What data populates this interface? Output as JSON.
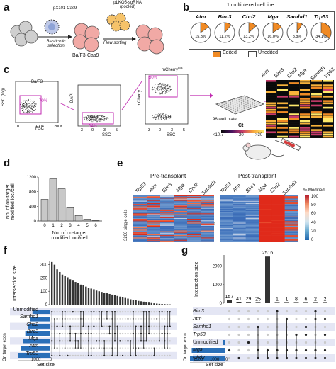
{
  "panels": {
    "a": {
      "label": "a",
      "vector1": "pX101-Cas9",
      "vector2_line1": "pLKO5-sgRNA",
      "vector2_line2": "(pooled)",
      "step1": "Blasticidin selection",
      "step1_l1": "Blasticidin",
      "step1_l2": "selection",
      "cells_label": "Ba/F3-Cas9",
      "step2": "Flow sorting",
      "cell_text": "Cas9"
    },
    "b": {
      "label": "b",
      "title": "1 multiplexed cell line",
      "genes": [
        "Atm",
        "Birc3",
        "Chd2",
        "Mga",
        "Samhd1",
        "Trp53"
      ],
      "percents": [
        "15.3%",
        "11.2%",
        "13.2%",
        "16.0%",
        "8.8%",
        "34.1%"
      ],
      "values": [
        15.3,
        11.2,
        13.2,
        16.0,
        8.8,
        34.1
      ],
      "legend_edited": "Edited",
      "legend_unedited": "Unedited",
      "edited_color": "#f08a24"
    },
    "c": {
      "label": "c",
      "plot1_gate": "Ba/F3",
      "plot1_pct": "70%",
      "plot1_ylabel": "SSC (log)",
      "plot1_xlabel": "FSC",
      "plot1_xticks": [
        "0",
        "100K",
        "200K"
      ],
      "plot2_gate": "DAPI",
      "plot2_gate_sup": "neg",
      "plot2_pct": "94%",
      "plot2_ylabel": "DAPI",
      "plot2_xlabel": "SSC",
      "plot2_xticks": [
        "-3",
        "0",
        "3",
        "5"
      ],
      "plot3_gate": "mCherry",
      "plot3_gate_sup": "pos",
      "plot3_pct": "50%",
      "plot3_ylabel": "mCherry",
      "plot3_xlabel": "SSC",
      "plot3_xticks": [
        "-3",
        "0",
        "3",
        "5"
      ],
      "plate_label": "96-well plate",
      "heat_genes": [
        "Atm",
        "Birc3",
        "Chd2",
        "Mga",
        "Samhd1",
        "Trp53"
      ],
      "ct_label": "Ct",
      "ct_ticks": [
        "<10.7",
        "20",
        ">30"
      ]
    },
    "d": {
      "label": "d",
      "ylabel": "No. of on-target modified loci/cell",
      "ylabel_l1": "No. of on-target",
      "ylabel_l2": "modified loci/cell",
      "xlabel_l1": "No. of on-target",
      "xlabel_l2": "modified loci/cell",
      "yticks": [
        "0",
        "400",
        "800",
        "1200"
      ]
    },
    "e": {
      "label": "e",
      "pre_title": "Pre-transplant",
      "post_title": "Post-transplant",
      "pre_genes": [
        "Trp53",
        "Atm",
        "Birc3",
        "Mga",
        "Chd2",
        "Samhd1"
      ],
      "post_genes": [
        "Trp53",
        "Atm",
        "Birc3",
        "Mga",
        "Chd2",
        "Samhd1"
      ],
      "pre_ylabel": "3200 single cells",
      "post_ylabel": "2747 single cells",
      "colorbar_title": "% Modified",
      "colorbar_ticks": [
        "100",
        "80",
        "60",
        "40",
        "20",
        "0"
      ]
    },
    "f": {
      "label": "f",
      "ylabel": "Intersection size",
      "yticks": [
        "0",
        "100",
        "200",
        "300"
      ],
      "rows_label": "On target exon",
      "rows": [
        "Unmodified",
        "Samhd1",
        "Chd2",
        "Birc3",
        "Mga",
        "Atm",
        "Trp53"
      ],
      "set_size_label": "Set size",
      "set_size_ticks": [
        "1000",
        "0"
      ]
    },
    "g": {
      "label": "g",
      "ylabel": "Intersection size",
      "yticks": [
        "0",
        "1000",
        "2000"
      ],
      "bar_labels": [
        "157",
        "41",
        "29",
        "25",
        "2516",
        "1",
        "1",
        "8",
        "6",
        "2",
        "2"
      ],
      "rows_label": "On target exon",
      "rows": [
        "Birc3",
        "Atm",
        "Samhd1",
        "Trp53",
        "Unmodified",
        "Mga",
        "Chd2"
      ],
      "set_size_label": "Set size",
      "set_size_ticks": [
        "2000",
        "1000",
        "0"
      ]
    }
  },
  "chart_data": [
    {
      "panel": "b",
      "type": "pie",
      "categories": [
        "Atm",
        "Birc3",
        "Chd2",
        "Mga",
        "Samhd1",
        "Trp53"
      ],
      "series": [
        {
          "name": "Edited",
          "values": [
            15.3,
            11.2,
            13.2,
            16.0,
            8.8,
            34.1
          ]
        }
      ]
    },
    {
      "panel": "d",
      "type": "bar",
      "categories": [
        "0",
        "1",
        "2",
        "3",
        "4",
        "5",
        "6"
      ],
      "values": [
        590,
        1150,
        880,
        380,
        150,
        50,
        10
      ],
      "ylabel": "No. of on-target modified loci/cell",
      "xlabel": "No. of on-target modified loci/cell",
      "ylim": [
        0,
        1200
      ]
    },
    {
      "panel": "f",
      "type": "bar",
      "values": [
        320,
        300,
        265,
        245,
        225,
        215,
        205,
        190,
        180,
        170,
        160,
        150,
        145,
        135,
        125,
        120,
        115,
        105,
        100,
        95,
        90,
        85,
        80,
        75,
        70,
        65,
        60,
        55,
        50,
        45,
        40,
        36,
        32,
        28,
        25,
        22,
        18,
        15,
        12,
        10,
        8,
        6,
        5,
        4,
        3,
        2
      ],
      "ylabel": "Intersection size",
      "ylim": [
        0,
        330
      ]
    },
    {
      "panel": "g",
      "type": "bar",
      "values": [
        157,
        41,
        29,
        25,
        2516,
        1,
        1,
        8,
        6,
        2,
        2
      ],
      "ylabel": "Intersection size",
      "ylim": [
        0,
        2600
      ]
    }
  ]
}
